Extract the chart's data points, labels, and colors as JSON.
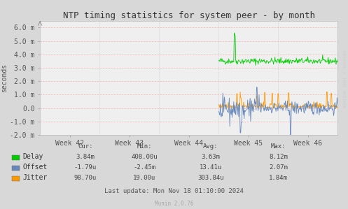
{
  "title": "NTP timing statistics for system peer - by month",
  "ylabel": "seconds",
  "ylim": [
    -0.002,
    0.0065
  ],
  "yticks": [
    -0.002,
    -0.001,
    0.0,
    0.001,
    0.002,
    0.003,
    0.004,
    0.005,
    0.006
  ],
  "ytick_labels": [
    "-2.0 m",
    "-1.0 m",
    "0.0",
    "1.0 m",
    "2.0 m",
    "3.0 m",
    "4.0 m",
    "5.0 m",
    "6.0 m"
  ],
  "xtick_labels": [
    "Week 42",
    "Week 43",
    "Week 44",
    "Week 45",
    "Week 46"
  ],
  "bg_color": "#d8d8d8",
  "plot_bg_color": "#efefef",
  "grid_color_h": "#ff9999",
  "grid_color_v": "#aaaacc",
  "delay_color": "#00cc00",
  "offset_color": "#6688bb",
  "jitter_color": "#ff9900",
  "rrdtool_text_color": "#cccccc",
  "munin_text_color": "#aaaaaa",
  "legend_labels": [
    "Delay",
    "Offset",
    "Jitter"
  ],
  "stats_headers": [
    "Cur:",
    "Min:",
    "Avg:",
    "Max:"
  ],
  "stats_delay": [
    "3.84m",
    "408.00u",
    "3.63m",
    "8.12m"
  ],
  "stats_offset": [
    "-1.79u",
    "-2.45m",
    "13.41u",
    "2.07m"
  ],
  "stats_jitter": [
    "98.70u",
    "19.00u",
    "303.84u",
    "1.84m"
  ],
  "last_update": "Last update: Mon Nov 18 01:10:00 2024",
  "munin_version": "Munin 2.0.76",
  "title_fontsize": 9,
  "axis_fontsize": 7,
  "legend_fontsize": 7,
  "stats_fontsize": 6.5
}
